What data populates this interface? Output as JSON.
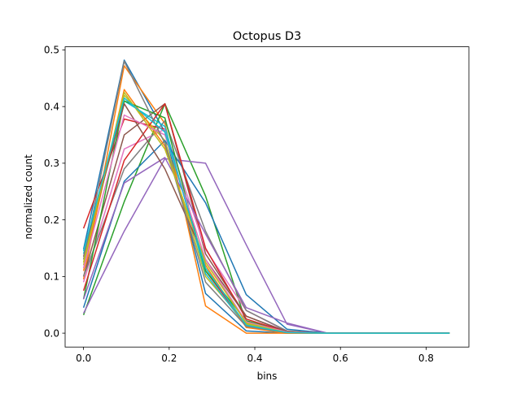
{
  "chart_data": {
    "type": "line",
    "title": "Octopus D3",
    "xlabel": "bins",
    "ylabel": "normalized count",
    "xlim": [
      -0.043,
      0.9
    ],
    "ylim": [
      -0.0245,
      0.5055
    ],
    "xticks": [
      0.0,
      0.2,
      0.4,
      0.6,
      0.8
    ],
    "xtick_labels": [
      "0.0",
      "0.2",
      "0.4",
      "0.6",
      "0.8"
    ],
    "yticks": [
      0.0,
      0.1,
      0.2,
      0.3,
      0.4,
      0.5
    ],
    "ytick_labels": [
      "0.0",
      "0.1",
      "0.2",
      "0.3",
      "0.4",
      "0.5"
    ],
    "grid": false,
    "legend": "none",
    "x": [
      0.0,
      0.095,
      0.19,
      0.285,
      0.38,
      0.475,
      0.57,
      0.665,
      0.76,
      0.855
    ],
    "series": [
      {
        "color": "#1f77b4",
        "values": [
          0.148,
          0.482,
          0.355,
          0.07,
          0.004,
          0.0,
          0.0,
          0.0,
          0.0,
          0.0
        ]
      },
      {
        "color": "#ff7f0e",
        "values": [
          0.095,
          0.472,
          0.37,
          0.048,
          0.0,
          0.0,
          0.0,
          0.0,
          0.0,
          0.0
        ]
      },
      {
        "color": "#2ca02c",
        "values": [
          0.032,
          0.232,
          0.405,
          0.242,
          0.018,
          0.002,
          0.0,
          0.0,
          0.0,
          0.0
        ]
      },
      {
        "color": "#d62728",
        "values": [
          0.185,
          0.378,
          0.36,
          0.11,
          0.014,
          0.001,
          0.0,
          0.0,
          0.0,
          0.0
        ]
      },
      {
        "color": "#9467bd",
        "values": [
          0.035,
          0.18,
          0.308,
          0.3,
          0.156,
          0.016,
          0.0,
          0.0,
          0.0,
          0.0
        ]
      },
      {
        "color": "#8c564b",
        "values": [
          0.1,
          0.35,
          0.405,
          0.14,
          0.03,
          0.002,
          0.0,
          0.0,
          0.0,
          0.0
        ]
      },
      {
        "color": "#e377c2",
        "values": [
          0.09,
          0.325,
          0.36,
          0.148,
          0.04,
          0.003,
          0.0,
          0.0,
          0.0,
          0.0
        ]
      },
      {
        "color": "#7f7f7f",
        "values": [
          0.1,
          0.29,
          0.375,
          0.18,
          0.04,
          0.004,
          0.0,
          0.0,
          0.0,
          0.0
        ]
      },
      {
        "color": "#bcbd22",
        "values": [
          0.12,
          0.42,
          0.34,
          0.1,
          0.016,
          0.001,
          0.0,
          0.0,
          0.0,
          0.0
        ]
      },
      {
        "color": "#17becf",
        "values": [
          0.14,
          0.41,
          0.365,
          0.105,
          0.012,
          0.001,
          0.0,
          0.0,
          0.0,
          0.0
        ]
      },
      {
        "color": "#1f77b4",
        "values": [
          0.045,
          0.268,
          0.34,
          0.23,
          0.068,
          0.007,
          0.0,
          0.0,
          0.0,
          0.0
        ]
      },
      {
        "color": "#ff7f0e",
        "values": [
          0.11,
          0.43,
          0.33,
          0.12,
          0.01,
          0.0,
          0.0,
          0.0,
          0.0,
          0.0
        ]
      },
      {
        "color": "#2ca02c",
        "values": [
          0.06,
          0.41,
          0.38,
          0.11,
          0.022,
          0.002,
          0.0,
          0.0,
          0.0,
          0.0
        ]
      },
      {
        "color": "#d62728",
        "values": [
          0.075,
          0.305,
          0.405,
          0.15,
          0.025,
          0.002,
          0.0,
          0.0,
          0.0,
          0.0
        ]
      },
      {
        "color": "#9467bd",
        "values": [
          0.06,
          0.265,
          0.31,
          0.175,
          0.045,
          0.018,
          0.0,
          0.0,
          0.0,
          0.0
        ]
      },
      {
        "color": "#8c564b",
        "values": [
          0.135,
          0.405,
          0.29,
          0.13,
          0.03,
          0.003,
          0.0,
          0.0,
          0.0,
          0.0
        ]
      },
      {
        "color": "#e377c2",
        "values": [
          0.115,
          0.385,
          0.35,
          0.13,
          0.02,
          0.002,
          0.0,
          0.0,
          0.0,
          0.0
        ]
      },
      {
        "color": "#7f7f7f",
        "values": [
          0.13,
          0.48,
          0.335,
          0.09,
          0.012,
          0.001,
          0.0,
          0.0,
          0.0,
          0.0
        ]
      },
      {
        "color": "#bcbd22",
        "values": [
          0.125,
          0.425,
          0.325,
          0.125,
          0.018,
          0.001,
          0.0,
          0.0,
          0.0,
          0.0
        ]
      },
      {
        "color": "#17becf",
        "values": [
          0.145,
          0.415,
          0.355,
          0.115,
          0.014,
          0.001,
          0.0,
          0.0,
          0.0,
          0.0
        ]
      }
    ]
  }
}
